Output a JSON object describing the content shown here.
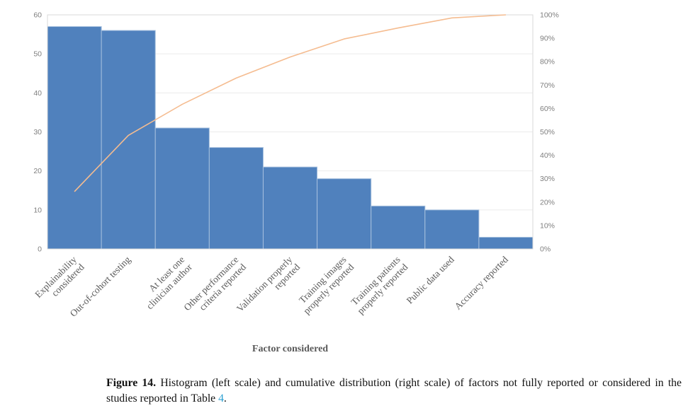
{
  "chart_data": {
    "type": "bar",
    "subtype": "pareto-histogram-with-cumulative-line",
    "title": "",
    "xlabel": "Factor considered",
    "categories": [
      "Explainability considered",
      "Out-of-cohort testing",
      "At least one clinician author",
      "Other performance criteria reported",
      "Validation properly reported",
      "Training images properly reported",
      "Training patients properly reported",
      "Public data used",
      "Accuracy reported"
    ],
    "category_lines": [
      [
        "Explainability",
        "considered"
      ],
      [
        "Out-of-cohort testing"
      ],
      [
        "At least one",
        "clinician author"
      ],
      [
        "Other performance",
        "criteria reported"
      ],
      [
        "Validation properly",
        "reported"
      ],
      [
        "Training images",
        "properly reported"
      ],
      [
        "Training patients",
        "properly reported"
      ],
      [
        "Public data used"
      ],
      [
        "Accuracy reported"
      ]
    ],
    "values": [
      57,
      56,
      31,
      26,
      21,
      18,
      11,
      10,
      3
    ],
    "series": [
      {
        "name": "Histogram (left scale)",
        "type": "bar",
        "values": [
          57,
          56,
          31,
          26,
          21,
          18,
          11,
          10,
          3
        ]
      },
      {
        "name": "Cumulative distribution (right scale)",
        "type": "line",
        "values_pct": [
          24.5,
          48.5,
          61.8,
          73.0,
          82.0,
          89.7,
          94.4,
          98.7,
          100.0
        ]
      }
    ],
    "left_axis": {
      "min": 0,
      "max": 60,
      "step": 10,
      "tick_labels": [
        "0",
        "10",
        "20",
        "30",
        "40",
        "50",
        "60"
      ]
    },
    "right_axis": {
      "min": 0,
      "max": 100,
      "step": 10,
      "tick_labels": [
        "0%",
        "10%",
        "20%",
        "30%",
        "40%",
        "50%",
        "60%",
        "70%",
        "80%",
        "90%",
        "100%"
      ]
    },
    "grid": "horizontal-light",
    "legend": "none",
    "colors": {
      "bar": "#5081bd",
      "bar_border": "#a6c0de",
      "line": "#f5bc90",
      "gridline": "#ebebeb",
      "plot_border": "#d9d9d9",
      "tick_text": "#7f7f7f",
      "category_text": "#5a5a5a",
      "axis_title_text": "#595959"
    }
  },
  "caption": {
    "label": "Figure 14.",
    "body": " Histogram (left scale) and cumulative distribution (right scale) of factors not fully reported or considered in the studies reported in Table ",
    "link_text": "4",
    "after_link": ".",
    "link_color": "#2da0d2"
  }
}
